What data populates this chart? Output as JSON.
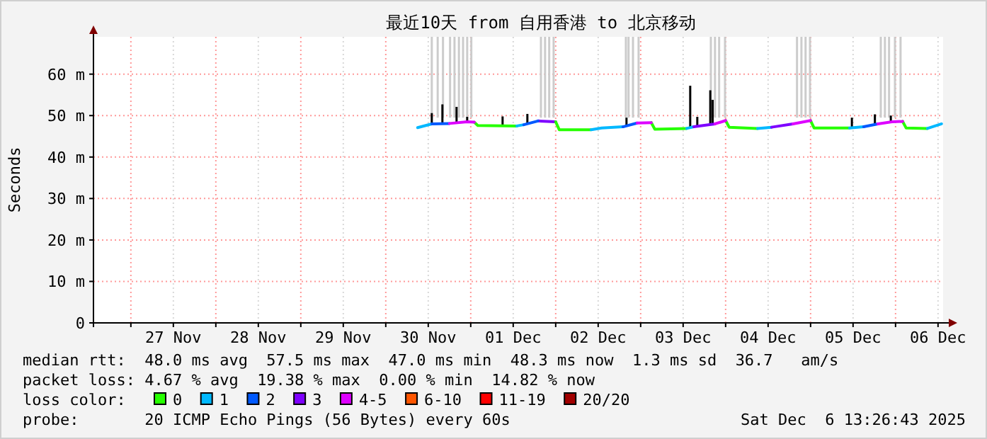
{
  "chart_data": {
    "type": "line",
    "title": "最近10天 from 自用香港 to 北京移动",
    "ylabel": "Seconds",
    "xlim": [
      "2025-11-26T13:26",
      "2025-12-06T13:26"
    ],
    "xticks": [
      {
        "value": "2025-11-27T00:00",
        "label": null
      },
      {
        "value": "2025-11-27T12:00",
        "label": "27 Nov"
      },
      {
        "value": "2025-11-28T00:00",
        "label": null
      },
      {
        "value": "2025-11-28T12:00",
        "label": "28 Nov"
      },
      {
        "value": "2025-11-29T00:00",
        "label": null
      },
      {
        "value": "2025-11-29T12:00",
        "label": "29 Nov"
      },
      {
        "value": "2025-11-30T00:00",
        "label": null
      },
      {
        "value": "2025-11-30T12:00",
        "label": "30 Nov"
      },
      {
        "value": "2025-12-01T00:00",
        "label": null
      },
      {
        "value": "2025-12-01T12:00",
        "label": "01 Dec"
      },
      {
        "value": "2025-12-02T00:00",
        "label": null
      },
      {
        "value": "2025-12-02T12:00",
        "label": "02 Dec"
      },
      {
        "value": "2025-12-03T00:00",
        "label": null
      },
      {
        "value": "2025-12-03T12:00",
        "label": "03 Dec"
      },
      {
        "value": "2025-12-04T00:00",
        "label": null
      },
      {
        "value": "2025-12-04T12:00",
        "label": "04 Dec"
      },
      {
        "value": "2025-12-05T00:00",
        "label": null
      },
      {
        "value": "2025-12-05T12:00",
        "label": "05 Dec"
      },
      {
        "value": "2025-12-06T00:00",
        "label": null
      },
      {
        "value": "2025-12-06T12:00",
        "label": "06 Dec"
      }
    ],
    "ylim": [
      0,
      69
    ],
    "yticks": [
      0,
      {
        "value": 10,
        "label": "10 m"
      },
      {
        "value": 20,
        "label": "20 m"
      },
      {
        "value": 30,
        "label": "30 m"
      },
      {
        "value": 40,
        "label": "40 m"
      },
      {
        "value": 50,
        "label": "50 m"
      },
      {
        "value": 60,
        "label": "60 m"
      }
    ],
    "grid": true,
    "legend": "bottom",
    "legend_title": "loss color:",
    "marker": "none",
    "line_style": "solid",
    "series": [
      {
        "type": "bar",
        "color": "#cccccc",
        "x": [
          "2025-11-30T13:00",
          "2025-11-30T14:40",
          "2025-11-30T16:10",
          "2025-11-30T18:10",
          "2025-11-30T19:25",
          "2025-11-30T20:40",
          "2025-11-30T21:50",
          "2025-11-30T23:00",
          "2025-12-01T00:10",
          "2025-12-01T19:50",
          "2025-12-01T21:00",
          "2025-12-01T22:10",
          "2025-12-01T23:25",
          "2025-12-02T19:50",
          "2025-12-02T20:35",
          "2025-12-02T21:50",
          "2025-12-02T23:25",
          "2025-12-03T19:50",
          "2025-12-03T21:00",
          "2025-12-03T22:10",
          "2025-12-03T23:50",
          "2025-12-04T20:10",
          "2025-12-04T21:25",
          "2025-12-04T22:35",
          "2025-12-04T23:50",
          "2025-12-05T19:50",
          "2025-12-05T21:00",
          "2025-12-05T22:10",
          "2025-12-05T23:50",
          "2025-12-06T01:25"
        ],
        "base": [
          49.5,
          49.5,
          49.5,
          49.5,
          49.5,
          49.5,
          49.5,
          49.5,
          49.5,
          49.5,
          49.5,
          49.5,
          49.5,
          49.5,
          49.5,
          49.5,
          49.5,
          49.5,
          49.5,
          49.5,
          49.5,
          49.5,
          49.5,
          49.5,
          49.5,
          49.5,
          49.5,
          49.5,
          49.5,
          49.5
        ],
        "values": [
          19.5,
          19.5,
          19.5,
          19.5,
          19.5,
          19.5,
          19.5,
          19.5,
          19.5,
          19.5,
          19.5,
          19.5,
          19.5,
          19.5,
          19.5,
          19.5,
          19.5,
          19.5,
          19.5,
          19.5,
          19.5,
          19.5,
          19.5,
          19.5,
          19.5,
          19.5,
          19.5,
          19.5,
          19.5,
          19.5
        ]
      },
      {
        "type": "bar",
        "color": "#000000",
        "x": [
          "2025-11-30T13:00",
          "2025-11-30T16:00",
          "2025-11-30T20:00",
          "2025-11-30T23:00",
          "2025-12-01T09:00",
          "2025-12-01T16:00",
          "2025-12-02T20:00",
          "2025-12-03T14:00",
          "2025-12-03T16:00",
          "2025-12-03T19:40",
          "2025-12-03T20:20",
          "2025-12-05T11:40",
          "2025-12-05T18:10",
          "2025-12-05T22:40"
        ],
        "base": [
          48.0,
          48.1,
          48.5,
          48.5,
          47.5,
          48.0,
          47.5,
          47.1,
          47.4,
          47.8,
          47.9,
          47.0,
          47.9,
          48.5
        ],
        "values": [
          2.6,
          4.6,
          3.6,
          1.2,
          2.3,
          2.4,
          2.0,
          10.1,
          2.3,
          8.3,
          5.9,
          2.5,
          2.4,
          1.5
        ]
      },
      {
        "name": "0",
        "color": "#26ff00",
        "x": [
          "2025-12-01T01:00",
          "2025-12-01T02:00",
          "2025-12-01T13:00"
        ],
        "values": [
          48.4,
          47.6,
          47.5
        ]
      },
      {
        "name": "1",
        "color": "#00b8ff",
        "x": [
          "2025-11-30T09:00",
          "2025-11-30T13:00"
        ],
        "values": [
          47.1,
          48.0
        ]
      },
      {
        "name": "2",
        "color": "#0059ff",
        "x": [
          "2025-11-30T13:00",
          "2025-11-30T18:00"
        ],
        "values": [
          48.0,
          48.1
        ]
      },
      {
        "name": "3",
        "color": "#7e00ff",
        "x": [
          "2025-12-01T19:00",
          "2025-12-02T00:00"
        ],
        "values": [
          48.7,
          48.5
        ]
      },
      {
        "name": "4-5",
        "color": "#dd00ff",
        "x": [
          "2025-11-30T18:00",
          "2025-11-30T23:00",
          "2025-12-01T01:00"
        ],
        "values": [
          48.1,
          48.5,
          48.4
        ]
      },
      {
        "name": "6-10",
        "color": "#ff5500"
      },
      {
        "name": "11-19",
        "color": "#ff0000"
      },
      {
        "name": "20/20",
        "color": "#a10000"
      },
      {
        "color": "#26ff00",
        "x": [
          "2025-12-02T00:00",
          "2025-12-02T01:00",
          "2025-12-02T10:00"
        ],
        "values": [
          48.5,
          46.6,
          46.6
        ]
      },
      {
        "color": "#26ff00",
        "x": [
          "2025-12-03T03:00",
          "2025-12-03T04:00",
          "2025-12-03T13:00"
        ],
        "values": [
          48.3,
          46.7,
          46.9
        ]
      },
      {
        "color": "#26ff00",
        "x": [
          "2025-12-04T00:00",
          "2025-12-04T01:00",
          "2025-12-04T09:00"
        ],
        "values": [
          48.8,
          47.2,
          46.9
        ]
      },
      {
        "color": "#26ff00",
        "x": [
          "2025-12-05T00:00",
          "2025-12-05T01:00",
          "2025-12-05T11:00"
        ],
        "values": [
          48.8,
          47.0,
          47.0
        ]
      },
      {
        "color": "#26ff00",
        "x": [
          "2025-12-06T02:00",
          "2025-12-06T03:00",
          "2025-12-06T09:00"
        ],
        "values": [
          48.6,
          47.0,
          46.9
        ]
      },
      {
        "color": "#00b8ff",
        "x": [
          "2025-12-01T13:00",
          "2025-12-01T15:00"
        ],
        "values": [
          47.5,
          47.8
        ]
      },
      {
        "color": "#00b8ff",
        "x": [
          "2025-12-02T10:00",
          "2025-12-02T13:00",
          "2025-12-02T19:00"
        ],
        "values": [
          46.6,
          47.0,
          47.3
        ]
      },
      {
        "color": "#00b8ff",
        "x": [
          "2025-12-03T13:00",
          "2025-12-03T15:00"
        ],
        "values": [
          46.9,
          47.3
        ]
      },
      {
        "color": "#00b8ff",
        "x": [
          "2025-12-04T09:00",
          "2025-12-04T13:00"
        ],
        "values": [
          46.9,
          47.2
        ]
      },
      {
        "color": "#00b8ff",
        "x": [
          "2025-12-05T11:00",
          "2025-12-05T15:00"
        ],
        "values": [
          47.0,
          47.3
        ]
      },
      {
        "color": "#00b8ff",
        "x": [
          "2025-12-06T09:00",
          "2025-12-06T13:00"
        ],
        "values": [
          46.9,
          48.0
        ]
      },
      {
        "color": "#0059ff",
        "x": [
          "2025-12-01T15:00",
          "2025-12-01T19:00"
        ],
        "values": [
          47.8,
          48.7
        ]
      },
      {
        "color": "#0059ff",
        "x": [
          "2025-12-02T19:00",
          "2025-12-02T23:00"
        ],
        "values": [
          47.3,
          48.2
        ]
      },
      {
        "color": "#0059ff",
        "x": [
          "2025-12-05T15:00",
          "2025-12-05T19:00"
        ],
        "values": [
          47.3,
          48.0
        ]
      },
      {
        "color": "#7e00ff",
        "x": [
          "2025-12-03T15:00",
          "2025-12-03T21:00"
        ],
        "values": [
          47.3,
          48.0
        ]
      },
      {
        "color": "#7e00ff",
        "x": [
          "2025-12-04T13:00",
          "2025-12-04T19:00"
        ],
        "values": [
          47.2,
          48.0
        ]
      },
      {
        "color": "#dd00ff",
        "x": [
          "2025-12-02T23:00",
          "2025-12-03T03:00"
        ],
        "values": [
          48.2,
          48.3
        ]
      },
      {
        "color": "#dd00ff",
        "x": [
          "2025-12-03T21:00",
          "2025-12-04T00:00"
        ],
        "values": [
          48.0,
          48.8
        ]
      },
      {
        "color": "#dd00ff",
        "x": [
          "2025-12-04T19:00",
          "2025-12-05T00:00"
        ],
        "values": [
          48.0,
          48.8
        ]
      },
      {
        "color": "#dd00ff",
        "x": [
          "2025-12-05T19:00",
          "2025-12-05T23:00",
          "2025-12-06T02:00"
        ],
        "values": [
          48.0,
          48.5,
          48.6
        ]
      }
    ],
    "annotations": [
      "median rtt:  48.0 ms avg  57.5 ms max  47.0 ms min  48.3 ms now  1.3 ms sd  36.7   am/s",
      "packet loss: 4.67 % avg  19.38 % max  0.00 % min  14.82 % now",
      "probe:       20 ICMP Echo Pings (56 Bytes) every 60s",
      "Sat Dec  6 13:26:43 2025"
    ]
  }
}
